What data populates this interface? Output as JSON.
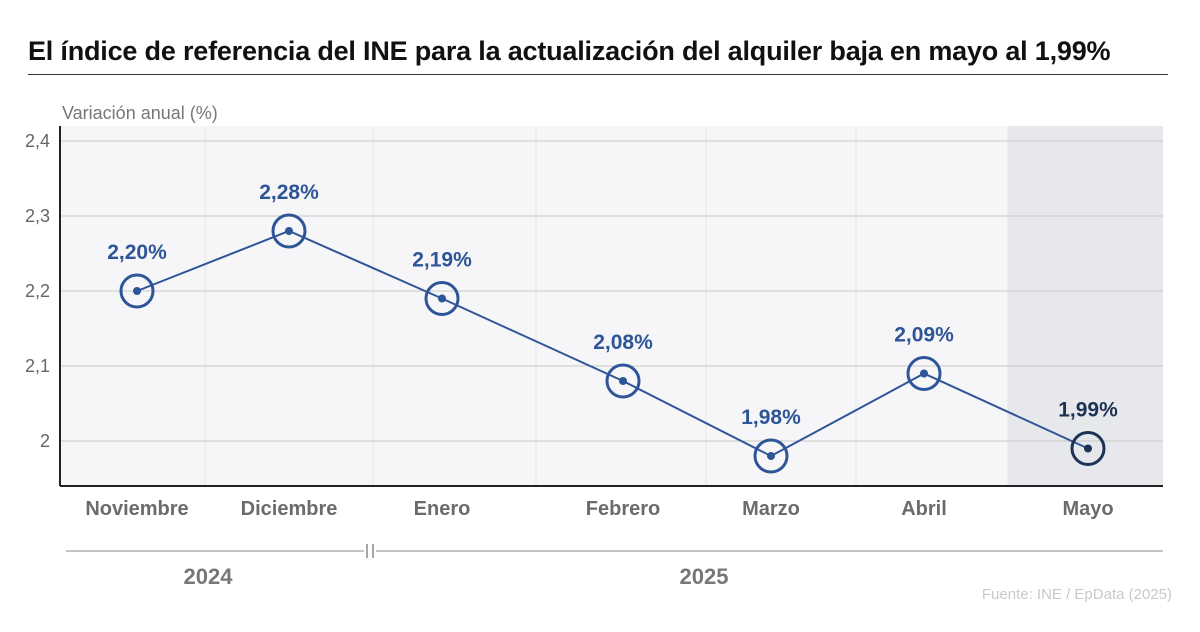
{
  "title": "El índice de referencia del INE para la actualización del alquiler baja en mayo al 1,99%",
  "source": "Fuente: INE / EpData (2025)",
  "chart_data": {
    "type": "line",
    "title": "El índice de referencia del INE para la actualización del alquiler baja en mayo al 1,99%",
    "ylabel": "Variación anual (%)",
    "xlabel": "",
    "categories": [
      "Noviembre",
      "Diciembre",
      "Enero",
      "Febrero",
      "Marzo",
      "Abril",
      "Mayo"
    ],
    "series": [
      {
        "values": [
          2.2,
          2.28,
          2.19,
          2.08,
          1.98,
          2.09,
          1.99
        ],
        "labels": [
          "2,20%",
          "2,28%",
          "2,19%",
          "2,08%",
          "1,98%",
          "2,09%",
          "1,99%"
        ]
      }
    ],
    "ylim": [
      1.94,
      2.42
    ],
    "yticks": [
      2,
      2.1,
      2.2,
      2.3,
      2.4
    ],
    "ytick_labels": [
      "2",
      "2,1",
      "2,2",
      "2,3",
      "2,4"
    ],
    "year_groups": [
      {
        "label": "2024",
        "categories": [
          "Noviembre",
          "Diciembre"
        ]
      },
      {
        "label": "2025",
        "categories": [
          "Enero",
          "Febrero",
          "Marzo",
          "Abril",
          "Mayo"
        ]
      }
    ],
    "highlighted_category": "Mayo",
    "grid": true,
    "colors": {
      "line": "#2d5597",
      "marker_ring": "#2d5597",
      "marker_ring_highlight": "#1d3354",
      "label": "#2d5597",
      "label_highlight": "#1d3354",
      "grid": "#c8c8c8",
      "plot_bg": "#f6f6f8",
      "highlight_bg": "#e7e8ec"
    }
  }
}
